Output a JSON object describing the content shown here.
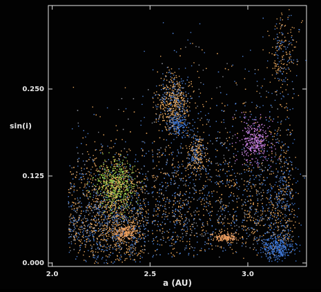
{
  "chart_data": {
    "type": "scatter",
    "title": "",
    "xlabel": "a (AU)",
    "ylabel": "sin(i)",
    "xlim": [
      1.98,
      3.3
    ],
    "ylim": [
      -0.005,
      0.37
    ],
    "x_ticks": [
      {
        "value": 2.0,
        "label": "2.0"
      },
      {
        "value": 2.5,
        "label": "2.5"
      },
      {
        "value": 3.0,
        "label": "3.0"
      }
    ],
    "y_ticks": [
      {
        "value": 0.0,
        "label": "0.000"
      },
      {
        "value": 0.125,
        "label": "0.125"
      },
      {
        "value": 0.25,
        "label": "0.250"
      }
    ],
    "grid": false,
    "background": "#020202",
    "axis_color": "#e6e6e6",
    "point_colors": {
      "background_orange": "#e8a55a",
      "background_blue": "#4f82d4",
      "background_grey": "#8b8f99",
      "flora_green": "#9ad44c",
      "vesta_orange": "#f2b063",
      "themis_blue": "#3f79d9",
      "eos_purple": "#c87ee0",
      "koronis_orange": "#f0a060"
    },
    "notes_structure": [
      {
        "family": "diffuse background",
        "points": [
          [
            2.15,
            0.07
          ],
          [
            2.3,
            0.15
          ],
          [
            2.6,
            0.2
          ],
          [
            2.9,
            0.12
          ],
          [
            3.1,
            0.18
          ]
        ]
      },
      {
        "family": "green cluster",
        "points": [
          [
            2.3,
            0.115
          ],
          [
            2.35,
            0.12
          ],
          [
            2.28,
            0.1
          ]
        ]
      },
      {
        "family": "orange cluster upper",
        "points": [
          [
            2.6,
            0.23
          ],
          [
            2.62,
            0.25
          ],
          [
            2.58,
            0.21
          ]
        ]
      },
      {
        "family": "pink cluster",
        "points": [
          [
            3.02,
            0.175
          ],
          [
            3.05,
            0.18
          ],
          [
            3.0,
            0.165
          ]
        ]
      },
      {
        "family": "orange cluster low",
        "points": [
          [
            2.87,
            0.035
          ],
          [
            2.9,
            0.038
          ]
        ]
      },
      {
        "family": "blue cluster low",
        "points": [
          [
            3.15,
            0.02
          ],
          [
            3.1,
            0.025
          ]
        ]
      }
    ]
  }
}
